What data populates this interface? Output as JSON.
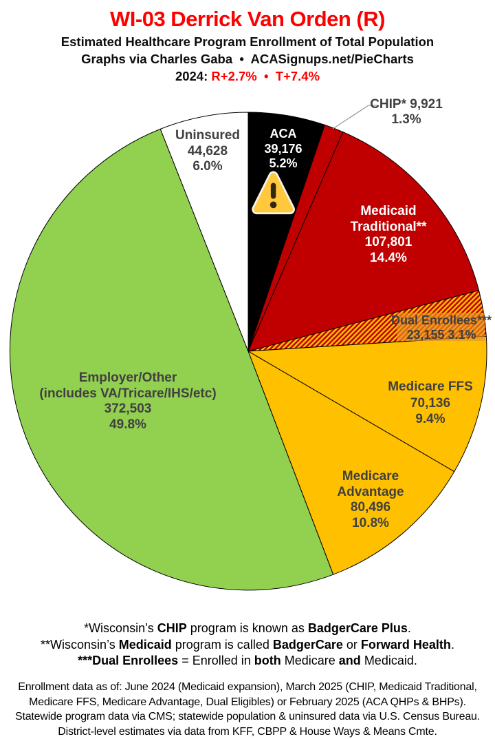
{
  "header": {
    "title": "WI-03 Derrick Van Orden (R)",
    "subtitle": "Estimated Healthcare Program Enrollment of Total Population",
    "credit": "Graphs via Charles Gaba  •  ACASignups.net/PieCharts",
    "partisan_prefix": "2024: ",
    "partisan_value": "R+2.7%  •  T+7.4%"
  },
  "chart_data": {
    "type": "pie",
    "title": "Estimated Healthcare Program Enrollment of Total Population",
    "direction": "clockwise",
    "start_angle": "12 o'clock",
    "legend_position": "labels-on-slices",
    "colors": {
      "black": "#000000",
      "dark_red": "#C00000",
      "gold": "#FFC000",
      "green": "#92D050",
      "white": "#FFFFFF",
      "label_gray": "#404040"
    },
    "hatch": {
      "background": "#FFC000",
      "stripe": "#C00000",
      "direction": "diagonal-up-right"
    },
    "slices": [
      {
        "id": "aca",
        "label": "ACA",
        "value": 39176,
        "pct": 5.2,
        "color": "#000000",
        "display_lines": [
          "ACA",
          "39,176",
          "5.2%"
        ],
        "annotation": "warning-icon"
      },
      {
        "id": "chip",
        "label": "CHIP*",
        "value": 9921,
        "pct": 1.3,
        "color": "#C00000",
        "display_lines": [
          "CHIP* 9,921",
          "1.3%"
        ],
        "annotation": "callout-leader-line"
      },
      {
        "id": "medicaid",
        "label": "Medicaid Traditional**",
        "value": 107801,
        "pct": 14.4,
        "color": "#C00000",
        "display_lines": [
          "Medicaid",
          "Traditional**",
          "107,801",
          "14.4%"
        ]
      },
      {
        "id": "dual",
        "label": "Dual Enrollees***",
        "value": 23155,
        "pct": 3.1,
        "color": "hatch",
        "display_lines": [
          "Dual Enrollees***",
          "23,155 3.1%"
        ]
      },
      {
        "id": "ffs",
        "label": "Medicare FFS",
        "value": 70136,
        "pct": 9.4,
        "color": "#FFC000",
        "display_lines": [
          "Medicare FFS",
          "70,136",
          "9.4%"
        ]
      },
      {
        "id": "advantage",
        "label": "Medicare Advantage",
        "value": 80496,
        "pct": 10.8,
        "color": "#FFC000",
        "display_lines": [
          "Medicare",
          "Advantage",
          "80,496",
          "10.8%"
        ]
      },
      {
        "id": "employer",
        "label": "Employer/Other (includes VA/Tricare/IHS/etc)",
        "value": 372503,
        "pct": 49.8,
        "color": "#92D050",
        "display_lines": [
          "Employer/Other",
          "(includes VA/Tricare/IHS/etc)",
          "372,503",
          "49.8%"
        ]
      },
      {
        "id": "uninsured",
        "label": "Uninsured",
        "value": 44628,
        "pct": 6.0,
        "color": "#FFFFFF",
        "display_lines": [
          "Uninsured",
          "44,628",
          "6.0%"
        ]
      }
    ]
  },
  "footnotes": [
    [
      {
        "t": "*Wisconsin’s "
      },
      {
        "t": "CHIP",
        "b": 1
      },
      {
        "t": " program is known as "
      },
      {
        "t": "BadgerCare Plus",
        "b": 1
      },
      {
        "t": "."
      }
    ],
    [
      {
        "t": "**Wisconsin’s "
      },
      {
        "t": "Medicaid",
        "b": 1
      },
      {
        "t": " program is called "
      },
      {
        "t": "BadgerCare",
        "b": 1
      },
      {
        "t": " or "
      },
      {
        "t": "Forward Health",
        "b": 1
      },
      {
        "t": "."
      }
    ],
    [
      {
        "t": "***Dual Enrollees",
        "b": 1
      },
      {
        "t": " = Enrolled in "
      },
      {
        "t": "both",
        "b": 1
      },
      {
        "t": " Medicare "
      },
      {
        "t": "and",
        "b": 1
      },
      {
        "t": " Medicaid."
      }
    ]
  ],
  "disclaimer": [
    "Enrollment data as of: June 2024 (Medicaid expansion), March 2025 (CHIP, Medicaid Traditional,",
    "Medicare FFS, Medicare Advantage, Dual Eligibles) or February 2025 (ACA QHPs & BHPs).",
    "Statewide program data via CMS; statewide population & uninsured data via U.S. Census Bureau.",
    "District-level estimates via data from KFF, CBPP & House Ways & Means Cmte."
  ]
}
